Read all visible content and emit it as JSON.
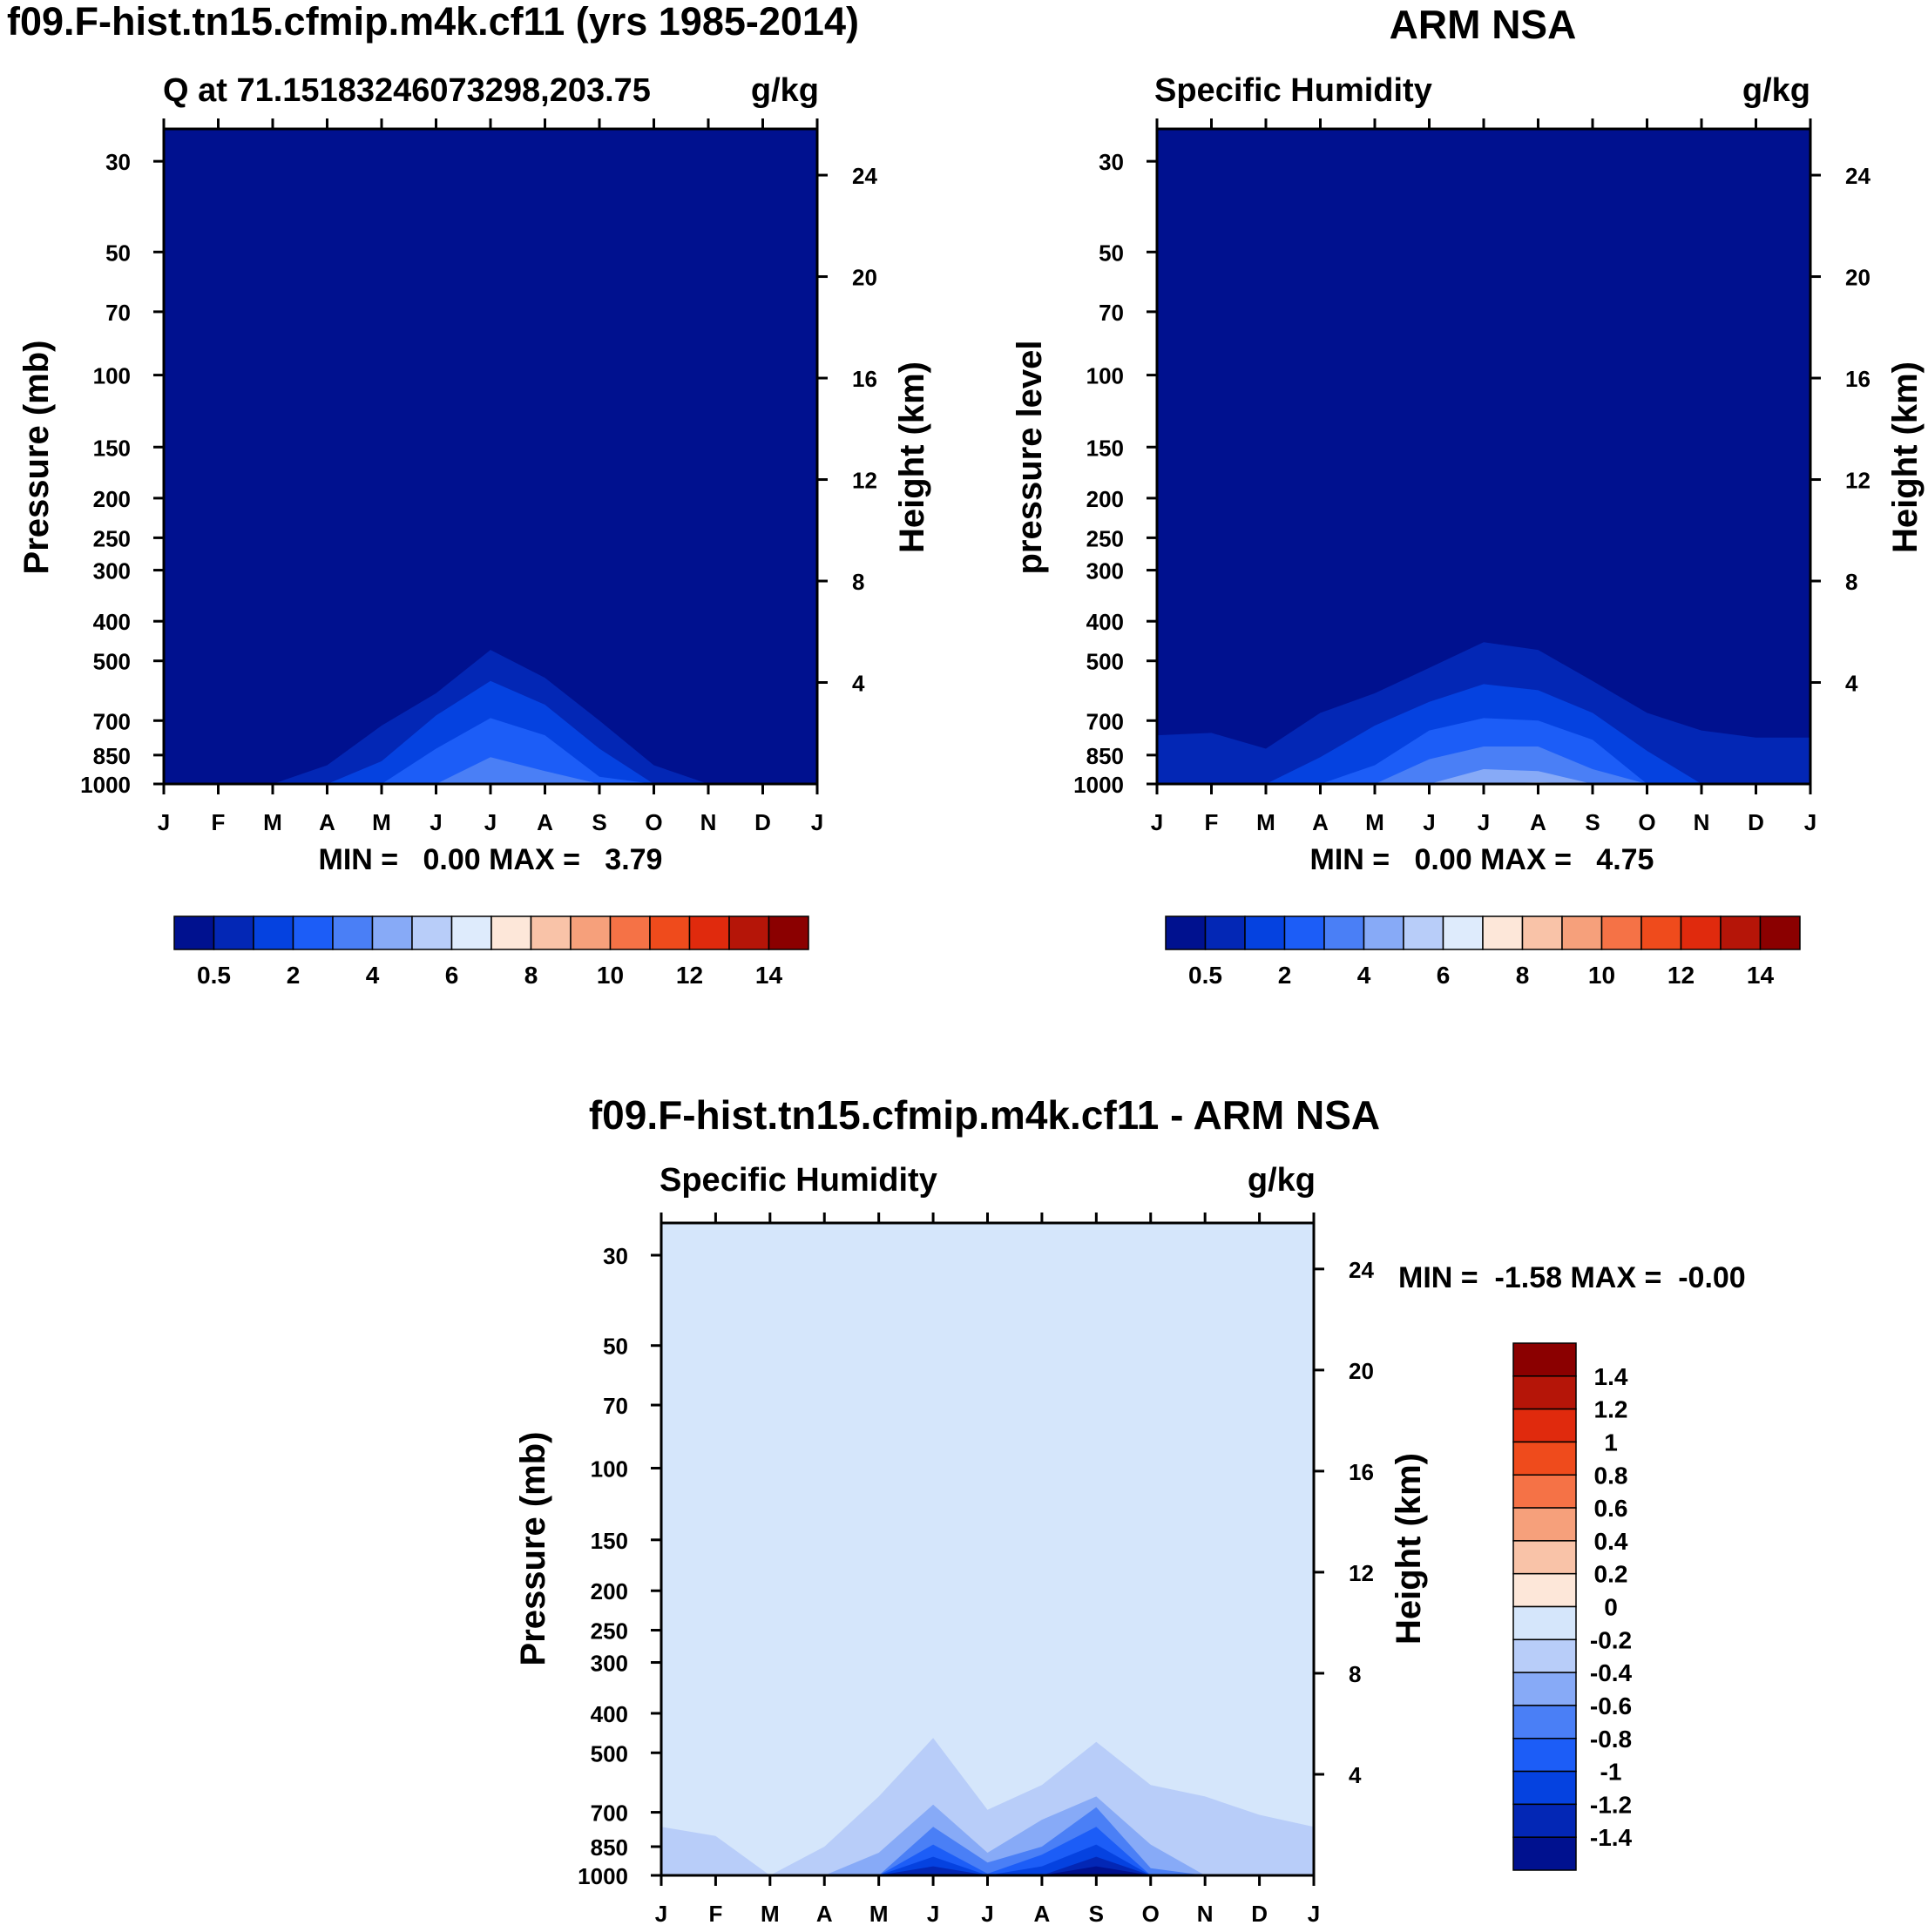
{
  "chart_data": [
    {
      "type": "contour",
      "title": "f09.F-hist.tn15.cfmip.m4k.cf11 (yrs 1985-2014)",
      "left_string": "Q at 71.15183246073298,203.75",
      "right_string": "g/kg",
      "ylabel": "Pressure (mb)",
      "ylabel_right": "Height (km)",
      "x_ticks": [
        "J",
        "F",
        "M",
        "A",
        "M",
        "J",
        "J",
        "A",
        "S",
        "O",
        "N",
        "D",
        "J"
      ],
      "y_ticks": [
        30,
        50,
        70,
        100,
        150,
        200,
        250,
        300,
        400,
        500,
        700,
        850,
        1000
      ],
      "y_ticks_right": [
        24,
        20,
        16,
        12,
        8,
        4
      ],
      "ylim": [
        1000,
        25
      ],
      "y_scale": "log",
      "stats": "MIN =   0.00 MAX =   3.79",
      "min": 0.0,
      "max": 3.79,
      "colorbar": {
        "orientation": "horizontal",
        "labels": [
          "0.5",
          "2",
          "4",
          "6",
          "8",
          "10",
          "12",
          "14"
        ],
        "colors": [
          "#00118f",
          "#0327b5",
          "#0542e0",
          "#1c5df7",
          "#4a7ff6",
          "#87aaf7",
          "#b8cdf9",
          "#deebfc",
          "#fde7d9",
          "#f9c3a8",
          "#f6a07b",
          "#f57246",
          "#ef4b1c",
          "#e02a0d",
          "#b51508",
          "#8b0000"
        ]
      },
      "contours": [
        {
          "level": 0.5,
          "color": "#0327b5",
          "top_p": [
            1000,
            1000,
            1000,
            900,
            720,
            600,
            470,
            550,
            700,
            900,
            1000,
            1000,
            1000
          ]
        },
        {
          "level": 1,
          "color": "#0542e0",
          "top_p": [
            1000,
            1000,
            1000,
            1000,
            880,
            680,
            560,
            640,
            820,
            1000,
            1000,
            1000,
            1000
          ]
        },
        {
          "level": 1.5,
          "color": "#1c5df7",
          "top_p": [
            1000,
            1000,
            1000,
            1000,
            1000,
            820,
            690,
            760,
            960,
            1000,
            1000,
            1000,
            1000
          ]
        },
        {
          "level": 2,
          "color": "#4a7ff6",
          "top_p": [
            1000,
            1000,
            1000,
            1000,
            1000,
            1000,
            860,
            930,
            1000,
            1000,
            1000,
            1000,
            1000
          ]
        }
      ]
    },
    {
      "type": "contour",
      "title": "ARM NSA",
      "left_string": "Specific Humidity",
      "right_string": "g/kg",
      "ylabel": "pressure level",
      "ylabel_right": "Height (km)",
      "x_ticks": [
        "J",
        "F",
        "M",
        "A",
        "M",
        "J",
        "J",
        "A",
        "S",
        "O",
        "N",
        "D",
        "J"
      ],
      "y_ticks": [
        30,
        50,
        70,
        100,
        150,
        200,
        250,
        300,
        400,
        500,
        700,
        850,
        1000
      ],
      "y_ticks_right": [
        24,
        20,
        16,
        12,
        8,
        4
      ],
      "ylim": [
        1000,
        25
      ],
      "y_scale": "log",
      "stats": "MIN =   0.00 MAX =   4.75",
      "min": 0.0,
      "max": 4.75,
      "colorbar": {
        "orientation": "horizontal",
        "labels": [
          "0.5",
          "2",
          "4",
          "6",
          "8",
          "10",
          "12",
          "14"
        ],
        "colors": [
          "#00118f",
          "#0327b5",
          "#0542e0",
          "#1c5df7",
          "#4a7ff6",
          "#87aaf7",
          "#b8cdf9",
          "#deebfc",
          "#fde7d9",
          "#f9c3a8",
          "#f6a07b",
          "#f57246",
          "#ef4b1c",
          "#e02a0d",
          "#b51508",
          "#8b0000"
        ]
      },
      "contours": [
        {
          "level": 0.5,
          "color": "#0327b5",
          "top_p": [
            760,
            750,
            820,
            670,
            600,
            520,
            450,
            470,
            560,
            670,
            740,
            770,
            770
          ]
        },
        {
          "level": 1,
          "color": "#0542e0",
          "top_p": [
            1000,
            1000,
            1000,
            860,
            720,
            630,
            570,
            590,
            670,
            830,
            1000,
            1000,
            1000
          ]
        },
        {
          "level": 1.5,
          "color": "#1c5df7",
          "top_p": [
            1000,
            1000,
            1000,
            1000,
            900,
            740,
            690,
            700,
            780,
            1000,
            1000,
            1000,
            1000
          ]
        },
        {
          "level": 2,
          "color": "#4a7ff6",
          "top_p": [
            1000,
            1000,
            1000,
            1000,
            1000,
            870,
            810,
            810,
            920,
            1000,
            1000,
            1000,
            1000
          ]
        },
        {
          "level": 3,
          "color": "#87aaf7",
          "top_p": [
            1000,
            1000,
            1000,
            1000,
            1000,
            1000,
            920,
            930,
            1000,
            1000,
            1000,
            1000,
            1000
          ]
        },
        {
          "level": 4,
          "color": "#b8cdf9",
          "top_p": [
            1000,
            1000,
            1000,
            1000,
            1000,
            1000,
            1000,
            990,
            1000,
            1000,
            1000,
            1000,
            1000
          ]
        }
      ]
    },
    {
      "type": "contour",
      "title": "f09.F-hist.tn15.cfmip.m4k.cf11 - ARM NSA",
      "left_string": "Specific Humidity",
      "right_string": "g/kg",
      "ylabel": "Pressure (mb)",
      "ylabel_right": "Height (km)",
      "x_ticks": [
        "J",
        "F",
        "M",
        "A",
        "M",
        "J",
        "J",
        "A",
        "S",
        "O",
        "N",
        "D",
        "J"
      ],
      "y_ticks": [
        30,
        50,
        70,
        100,
        150,
        200,
        250,
        300,
        400,
        500,
        700,
        850,
        1000
      ],
      "y_ticks_right": [
        24,
        20,
        16,
        12,
        8,
        4
      ],
      "ylim": [
        1000,
        25
      ],
      "y_scale": "log",
      "stats": "MIN =  -1.58 MAX =  -0.00",
      "min": -1.58,
      "max": -0.0,
      "colorbar": {
        "orientation": "vertical",
        "labels": [
          "1.4",
          "1.2",
          "1",
          "0.8",
          "0.6",
          "0.4",
          "0.2",
          "0",
          "-0.2",
          "-0.4",
          "-0.6",
          "-0.8",
          "-1",
          "-1.2",
          "-1.4"
        ],
        "colors": [
          "#8b0000",
          "#b51508",
          "#e02a0d",
          "#ef4b1c",
          "#f57246",
          "#f6a07b",
          "#f9c3a8",
          "#fde7d9",
          "#d5e6fb",
          "#b8cdf9",
          "#87aaf7",
          "#4a7ff6",
          "#1c5df7",
          "#0542e0",
          "#0327b5",
          "#00118f"
        ]
      },
      "contours": [
        {
          "level": -0.2,
          "color": "#b8cdf9",
          "top_p": [
            760,
            800,
            1000,
            850,
            640,
            460,
            690,
            600,
            470,
            600,
            640,
            710,
            760
          ]
        },
        {
          "level": -0.4,
          "color": "#87aaf7",
          "top_p": [
            1000,
            1000,
            1000,
            1000,
            880,
            670,
            880,
            730,
            640,
            840,
            1000,
            1000,
            1000
          ]
        },
        {
          "level": -0.6,
          "color": "#4a7ff6",
          "top_p": [
            1000,
            1000,
            1000,
            1000,
            1000,
            760,
            930,
            850,
            680,
            960,
            1000,
            1000,
            1000
          ]
        },
        {
          "level": -0.8,
          "color": "#1c5df7",
          "top_p": [
            1000,
            1000,
            1000,
            1000,
            1000,
            840,
            990,
            890,
            760,
            1000,
            1000,
            1000,
            1000
          ]
        },
        {
          "level": -1,
          "color": "#0542e0",
          "top_p": [
            1000,
            1000,
            1000,
            1000,
            1000,
            900,
            1000,
            950,
            840,
            1000,
            1000,
            1000,
            1000
          ]
        },
        {
          "level": -1.2,
          "color": "#0327b5",
          "top_p": [
            1000,
            1000,
            1000,
            1000,
            1000,
            950,
            1000,
            1000,
            900,
            1000,
            1000,
            1000,
            1000
          ]
        },
        {
          "level": -1.4,
          "color": "#00118f",
          "top_p": [
            1000,
            1000,
            1000,
            1000,
            1000,
            1000,
            1000,
            1000,
            950,
            1000,
            1000,
            1000,
            1000
          ]
        }
      ]
    }
  ]
}
